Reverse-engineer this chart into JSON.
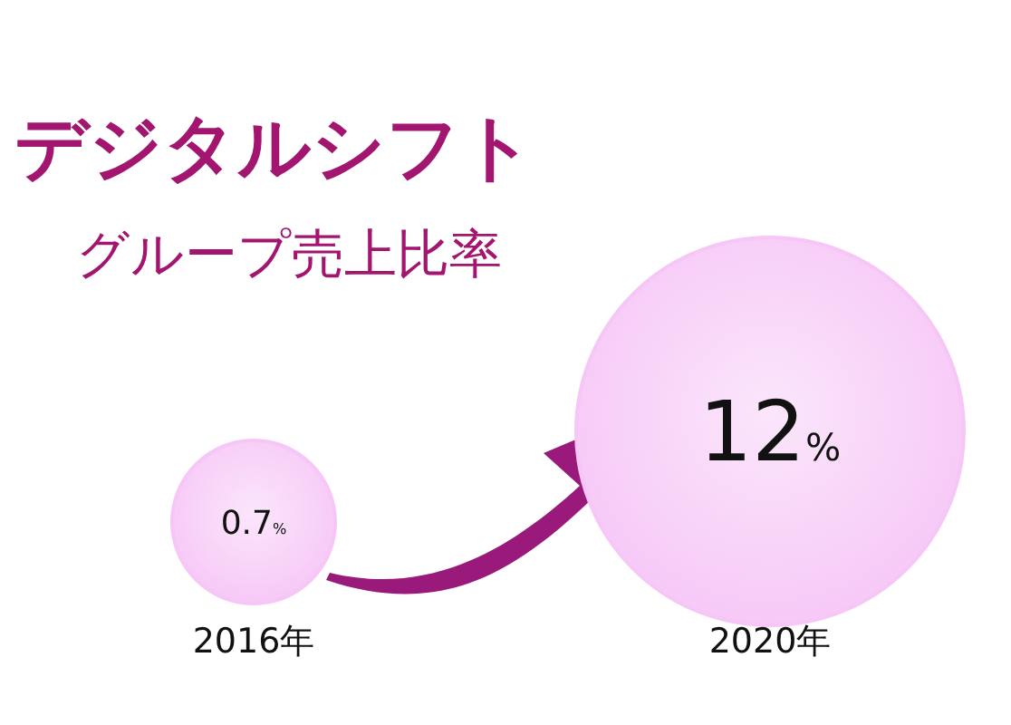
{
  "chart_data": {
    "type": "other",
    "title": "デジタルシフト",
    "subtitle": "グループ売上比率",
    "categories": [
      "2016年",
      "2020年"
    ],
    "values": [
      0.7,
      12
    ],
    "value_labels": [
      "0.7%",
      "12%"
    ],
    "colors": [
      "#f6c6f6",
      "#f6c6f6"
    ]
  }
}
